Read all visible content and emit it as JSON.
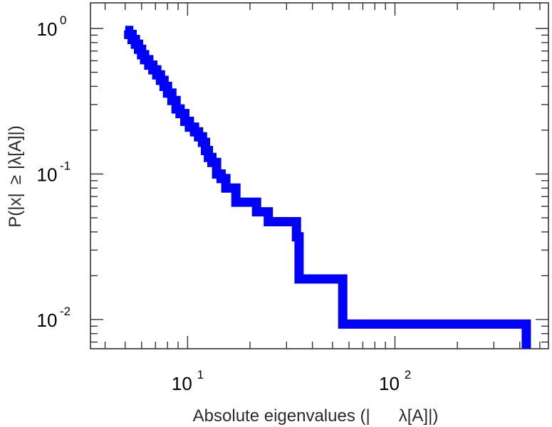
{
  "chart_data": {
    "type": "line",
    "step": true,
    "xscale": "log",
    "yscale": "log",
    "xlim": [
      3.4,
      550
    ],
    "ylim": [
      0.0063,
      1.5
    ],
    "xlabel_parts": [
      "Absolute eigenvalues (|",
      "λ[A]|)"
    ],
    "ylabel_parts": [
      "P(|x|",
      "≥",
      "|",
      "λ[A]|)"
    ],
    "xticks": [
      {
        "value": 10,
        "base": "10",
        "exp": "1"
      },
      {
        "value": 100,
        "base": "10",
        "exp": "2"
      }
    ],
    "yticks": [
      {
        "value": 1,
        "base": "10",
        "exp": "0"
      },
      {
        "value": 0.1,
        "base": "10",
        "exp": "-1"
      },
      {
        "value": 0.01,
        "base": "10",
        "exp": "-2"
      }
    ],
    "grid": false,
    "series": [
      {
        "color": "#0000ff",
        "x": [
          5.0,
          5.2,
          5.4,
          5.6,
          5.8,
          6.0,
          6.2,
          6.5,
          6.8,
          7.1,
          7.4,
          7.7,
          8.0,
          8.4,
          8.8,
          9.2,
          9.7,
          10.2,
          10.8,
          11.3,
          11.8,
          12.2,
          12.6,
          13.1,
          13.8,
          14.5,
          15.3,
          17.1,
          21.5,
          24.5,
          33.5,
          34.5,
          56.0,
          430
        ],
        "y": [
          0.97,
          0.91,
          0.84,
          0.78,
          0.72,
          0.66,
          0.61,
          0.56,
          0.52,
          0.48,
          0.44,
          0.4,
          0.36,
          0.32,
          0.28,
          0.26,
          0.23,
          0.21,
          0.195,
          0.18,
          0.165,
          0.145,
          0.13,
          0.12,
          0.1,
          0.093,
          0.08,
          0.064,
          0.055,
          0.047,
          0.037,
          0.019,
          0.0093,
          0.0063
        ]
      }
    ]
  }
}
